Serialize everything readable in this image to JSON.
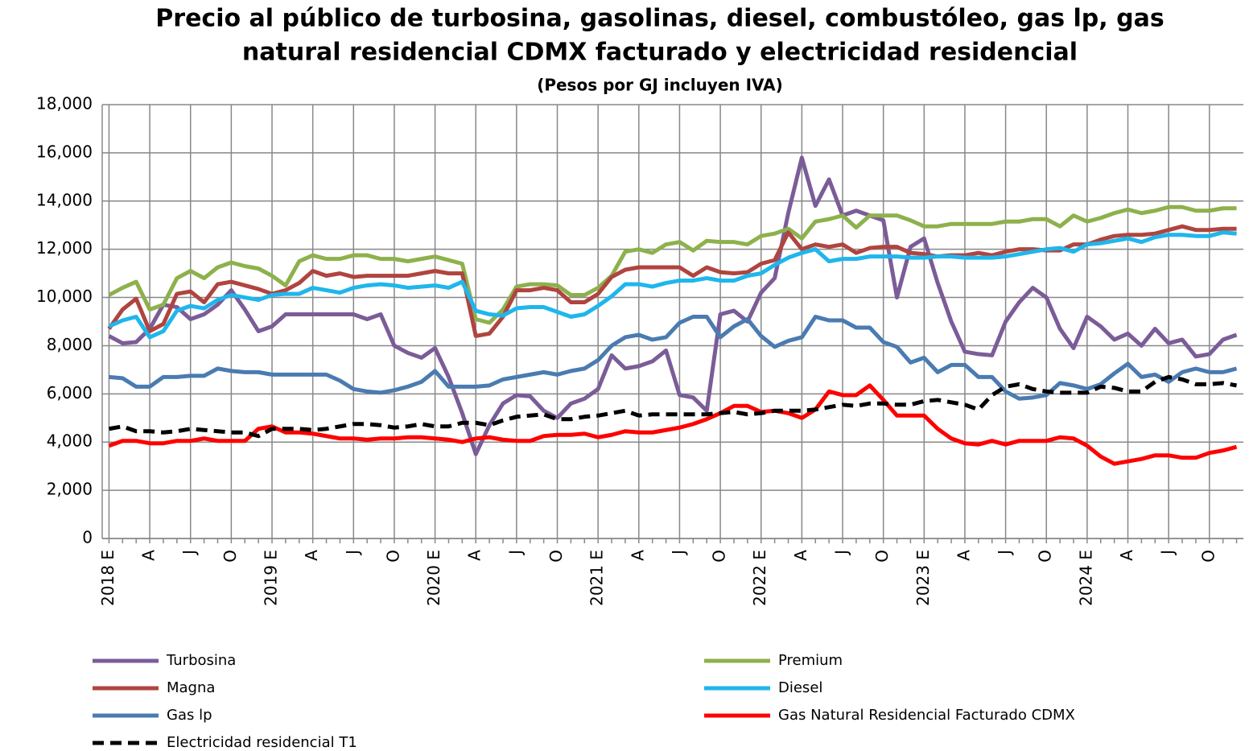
{
  "chart_data": {
    "type": "line",
    "title": [
      "Precio al público de turbosina, gasolinas, diesel, combustóleo, gas lp, gas",
      "natural residencial CDMX facturado  y electricidad  residencial"
    ],
    "subtitle": "(Pesos por  GJ incluyen IVA)",
    "categories": [
      "2018 E",
      null,
      null,
      "A",
      null,
      null,
      "J",
      null,
      null,
      "O",
      null,
      null,
      "2019 E",
      null,
      null,
      "A",
      null,
      null,
      "J",
      null,
      null,
      "O",
      null,
      null,
      "2020 E",
      null,
      null,
      "A",
      null,
      null,
      "J",
      null,
      null,
      "O",
      null,
      null,
      "2021 E",
      null,
      null,
      "A",
      null,
      null,
      "J",
      null,
      null,
      "O",
      null,
      null,
      "2022 E",
      null,
      null,
      "A",
      null,
      null,
      "J",
      null,
      null,
      "O",
      null,
      null,
      "2023 E",
      null,
      null,
      "A",
      null,
      null,
      "J",
      null,
      null,
      "O",
      null,
      null,
      "2024 E",
      null,
      null,
      "A",
      null,
      null,
      "J",
      null,
      null,
      "O",
      null,
      null
    ],
    "ylim": [
      0,
      18000
    ],
    "yticks": [
      0,
      {
        "value": 2000,
        "label": "2,000"
      },
      {
        "value": 4000,
        "label": "4,000"
      },
      {
        "value": 6000,
        "label": "6,000"
      },
      {
        "value": 8000,
        "label": "8,000"
      },
      {
        "value": 10000,
        "label": "10,000"
      },
      {
        "value": 12000,
        "label": "12,000"
      },
      {
        "value": 14000,
        "label": "14,000"
      },
      {
        "value": 16000,
        "label": "16,000"
      },
      {
        "value": 18000,
        "label": "18,000"
      }
    ],
    "grid": true,
    "series": [
      {
        "name": "Turbosina",
        "color": "#7b5c98",
        "dashed": false,
        "values": [
          8400,
          8100,
          8150,
          8700,
          9700,
          9600,
          9100,
          9300,
          9700,
          10300,
          9500,
          8600,
          8800,
          9300,
          9300,
          9300,
          9300,
          9300,
          9300,
          9100,
          9300,
          8000,
          7700,
          7500,
          7900,
          6700,
          5200,
          3500,
          4700,
          5600,
          5950,
          5900,
          5300,
          5000,
          5600,
          5800,
          6200,
          7600,
          7050,
          7150,
          7350,
          7800,
          5950,
          5850,
          5300,
          9300,
          9450,
          9000,
          10200,
          10800,
          13500,
          15800,
          13800,
          14900,
          13400,
          13600,
          13400,
          13200,
          10000,
          12100,
          12450,
          10600,
          9000,
          7750,
          7650,
          7600,
          9000,
          9800,
          10400,
          10000,
          8700,
          7900,
          9200,
          8800,
          8250,
          8500,
          8000,
          8700,
          8100,
          8250,
          7550,
          7650,
          8250,
          8450
        ]
      },
      {
        "name": "Premium",
        "color": "#8db14c",
        "dashed": false,
        "values": [
          10100,
          10400,
          10650,
          9500,
          9700,
          10800,
          11100,
          10800,
          11250,
          11450,
          11300,
          11200,
          10900,
          10500,
          11500,
          11750,
          11600,
          11600,
          11750,
          11750,
          11600,
          11600,
          11500,
          11600,
          11700,
          11550,
          11400,
          9100,
          8950,
          9500,
          10450,
          10550,
          10550,
          10500,
          10100,
          10100,
          10400,
          10900,
          11900,
          12000,
          11850,
          12200,
          12300,
          11950,
          12350,
          12300,
          12300,
          12200,
          12550,
          12650,
          12850,
          12450,
          13150,
          13250,
          13400,
          12900,
          13400,
          13400,
          13400,
          13200,
          12950,
          12950,
          13050,
          13050,
          13050,
          13050,
          13150,
          13150,
          13250,
          13250,
          12950,
          13400,
          13150,
          13300,
          13500,
          13650,
          13500,
          13600,
          13750,
          13750,
          13600,
          13600,
          13700,
          13700
        ]
      },
      {
        "name": "Magna",
        "color": "#b0443f",
        "dashed": false,
        "values": [
          8700,
          9500,
          9950,
          8600,
          8900,
          10150,
          10250,
          9800,
          10550,
          10650,
          10500,
          10350,
          10150,
          10300,
          10600,
          11100,
          10900,
          11000,
          10850,
          10900,
          10900,
          10900,
          10900,
          11000,
          11100,
          11000,
          11000,
          8400,
          8500,
          9200,
          10300,
          10300,
          10400,
          10300,
          9800,
          9800,
          10150,
          10850,
          11150,
          11250,
          11250,
          11250,
          11250,
          10900,
          11250,
          11050,
          11000,
          11050,
          11400,
          11550,
          12700,
          12000,
          12200,
          12100,
          12200,
          11850,
          12050,
          12100,
          12100,
          11850,
          11800,
          11700,
          11750,
          11750,
          11850,
          11750,
          11900,
          12000,
          12000,
          11950,
          11950,
          12200,
          12200,
          12400,
          12550,
          12600,
          12600,
          12650,
          12800,
          12950,
          12800,
          12800,
          12850,
          12850
        ]
      },
      {
        "name": "Diesel",
        "color": "#1fb6ec",
        "dashed": false,
        "values": [
          8800,
          9050,
          9200,
          8350,
          8600,
          9450,
          9650,
          9550,
          9900,
          10100,
          10000,
          9900,
          10100,
          10150,
          10150,
          10400,
          10300,
          10200,
          10400,
          10500,
          10550,
          10500,
          10400,
          10450,
          10500,
          10400,
          10650,
          9450,
          9300,
          9250,
          9550,
          9600,
          9600,
          9400,
          9200,
          9300,
          9650,
          10050,
          10550,
          10550,
          10450,
          10600,
          10700,
          10700,
          10800,
          10700,
          10700,
          10900,
          11000,
          11350,
          11650,
          11850,
          12000,
          11500,
          11600,
          11600,
          11700,
          11700,
          11700,
          11650,
          11650,
          11700,
          11700,
          11650,
          11650,
          11650,
          11700,
          11800,
          11900,
          12000,
          12050,
          11900,
          12200,
          12250,
          12350,
          12450,
          12300,
          12500,
          12600,
          12600,
          12550,
          12550,
          12700,
          12650
        ]
      },
      {
        "name": "Gas lp",
        "color": "#4a7bb1",
        "dashed": false,
        "values": [
          6700,
          6650,
          6300,
          6300,
          6700,
          6700,
          6750,
          6750,
          7050,
          6950,
          6900,
          6900,
          6800,
          6800,
          6800,
          6800,
          6800,
          6550,
          6200,
          6100,
          6050,
          6150,
          6300,
          6500,
          6950,
          6300,
          6300,
          6300,
          6350,
          6600,
          6700,
          6800,
          6900,
          6800,
          6950,
          7050,
          7400,
          8000,
          8350,
          8450,
          8250,
          8350,
          8950,
          9200,
          9200,
          8350,
          8800,
          9100,
          8400,
          7950,
          8200,
          8350,
          9200,
          9050,
          9050,
          8750,
          8750,
          8150,
          7950,
          7300,
          7500,
          6900,
          7200,
          7200,
          6700,
          6700,
          6100,
          5800,
          5850,
          5950,
          6450,
          6350,
          6200,
          6400,
          6850,
          7250,
          6700,
          6800,
          6500,
          6900,
          7050,
          6900,
          6900,
          7050
        ]
      },
      {
        "name": "Gas Natural Residencial Facturado CDMX",
        "color": "#ff0000",
        "dashed": false,
        "values": [
          3850,
          4050,
          4050,
          3950,
          3950,
          4050,
          4050,
          4150,
          4050,
          4050,
          4050,
          4550,
          4650,
          4400,
          4400,
          4350,
          4250,
          4150,
          4150,
          4100,
          4150,
          4150,
          4200,
          4200,
          4150,
          4100,
          4000,
          4150,
          4200,
          4100,
          4050,
          4050,
          4250,
          4300,
          4300,
          4350,
          4200,
          4300,
          4450,
          4400,
          4400,
          4500,
          4600,
          4750,
          4950,
          5200,
          5500,
          5500,
          5250,
          5300,
          5200,
          5000,
          5350,
          6100,
          5950,
          5950,
          6350,
          5750,
          5100,
          5100,
          5100,
          4550,
          4150,
          3950,
          3900,
          4050,
          3900,
          4050,
          4050,
          4050,
          4200,
          4150,
          3850,
          3400,
          3100,
          3200,
          3300,
          3450,
          3450,
          3350,
          3350,
          3550,
          3650,
          3800
        ]
      },
      {
        "name": "Electricidad residencial T1",
        "color": "#000000",
        "dashed": true,
        "values": [
          4550,
          4650,
          4450,
          4450,
          4400,
          4450,
          4550,
          4500,
          4450,
          4400,
          4400,
          4250,
          4550,
          4550,
          4550,
          4500,
          4550,
          4650,
          4750,
          4750,
          4700,
          4600,
          4650,
          4750,
          4650,
          4650,
          4800,
          4800,
          4700,
          4900,
          5050,
          5100,
          5150,
          4950,
          4950,
          5050,
          5100,
          5200,
          5300,
          5100,
          5150,
          5150,
          5150,
          5150,
          5150,
          5200,
          5250,
          5150,
          5200,
          5300,
          5300,
          5300,
          5350,
          5450,
          5550,
          5500,
          5600,
          5600,
          5550,
          5550,
          5700,
          5750,
          5650,
          5550,
          5350,
          5950,
          6300,
          6400,
          6200,
          6100,
          6050,
          6050,
          6050,
          6300,
          6250,
          6100,
          6100,
          6500,
          6700,
          6600,
          6400,
          6400,
          6450,
          6350
        ]
      }
    ]
  }
}
